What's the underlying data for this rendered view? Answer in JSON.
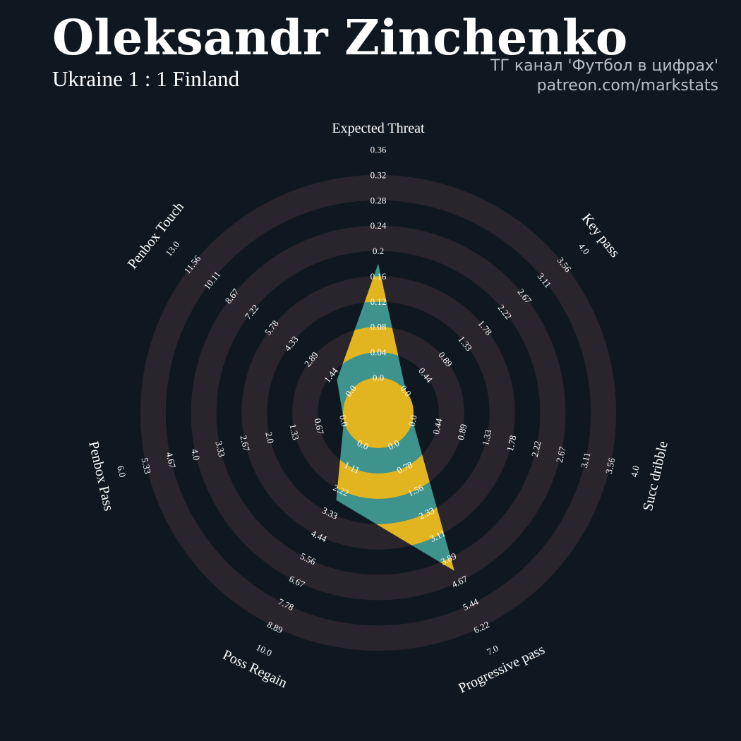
{
  "header": {
    "title": "Oleksandr Zinchenko",
    "subtitle": "Ukraine 1 : 1 Finland",
    "credit_line1": "ТГ канал 'Футбол в цифрах'",
    "credit_line2": "patreon.com/markstats"
  },
  "colors": {
    "background": "#0f1820",
    "ring": "#2a252c",
    "fill_yellow": "#e2b41f",
    "fill_teal": "#3e938c",
    "text": "#ffffff"
  },
  "chart_data": {
    "type": "radar",
    "title": "Oleksandr Zinchenko",
    "subtitle": "Ukraine 1 : 1 Finland",
    "axes": [
      {
        "name": "Expected Threat",
        "min": 0.0,
        "max": 0.36,
        "value": 0.18,
        "ticks": [
          "0.0",
          "0.04",
          "0.08",
          "0.12",
          "0.16",
          "0.2",
          "0.24",
          "0.28",
          "0.32",
          "0.36"
        ]
      },
      {
        "name": "Key pass",
        "min": 0.0,
        "max": 4.0,
        "value": 0.0,
        "ticks": [
          "0.0",
          "0.44",
          "0.89",
          "1.33",
          "1.78",
          "2.22",
          "2.67",
          "3.11",
          "3.56",
          "4.0"
        ]
      },
      {
        "name": "Succ dribble",
        "min": 0.0,
        "max": 4.0,
        "value": 0.0,
        "ticks": [
          "0.0",
          "0.44",
          "0.89",
          "1.33",
          "1.78",
          "2.22",
          "2.67",
          "3.11",
          "3.56",
          "4.0"
        ]
      },
      {
        "name": "Progressive pass",
        "min": 0.0,
        "max": 7.0,
        "value": 4.3,
        "ticks": [
          "0.0",
          "0.78",
          "1.56",
          "2.33",
          "3.11",
          "3.89",
          "4.67",
          "5.44",
          "6.22",
          "7.0"
        ]
      },
      {
        "name": "Poss Regain",
        "min": 0.0,
        "max": 10.0,
        "value": 2.7,
        "ticks": [
          "0.0",
          "1.11",
          "2.22",
          "3.33",
          "4.44",
          "5.56",
          "6.67",
          "7.78",
          "8.89",
          "10.0"
        ]
      },
      {
        "name": "Penbox Pass",
        "min": 0.0,
        "max": 6.0,
        "value": 0.0,
        "ticks": [
          "0.0",
          "0.67",
          "1.33",
          "2.0",
          "2.67",
          "3.33",
          "4.0",
          "4.67",
          "5.33",
          "6.0"
        ]
      },
      {
        "name": "Penbox Touch",
        "min": 0.0,
        "max": 13.0,
        "value": 1.0,
        "ticks": [
          "0.0",
          "1.44",
          "2.89",
          "4.33",
          "5.78",
          "7.22",
          "8.67",
          "10.11",
          "11.56",
          "13.0"
        ]
      }
    ]
  }
}
